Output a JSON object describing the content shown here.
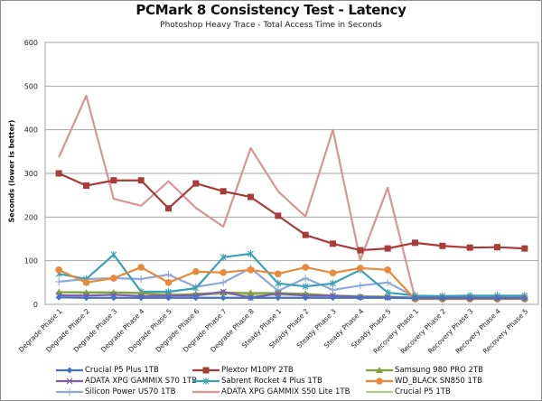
{
  "chart_data": {
    "type": "line",
    "title": "PCMark 8 Consistency Test - Latency",
    "subtitle": "Photoshop Heavy Trace - Total Access Time in Seconds",
    "xlabel": "",
    "ylabel": "Seconds (lower is better)",
    "ylim": [
      0,
      600
    ],
    "yticks": [
      "0",
      "100",
      "200",
      "300",
      "400",
      "500",
      "600"
    ],
    "grid": true,
    "legend_position": "bottom",
    "categories": [
      "Degrade Phase 1",
      "Degrade Phase 2",
      "Degrade Phase 3",
      "Degrade Phase 4",
      "Degrade Phase 5",
      "Degrade Phase 6",
      "Degrade Phase 7",
      "Degrade Phase 8",
      "Steady Phase 1",
      "Steady Phase 2",
      "Steady Phase 3",
      "Steady Phase 4",
      "Steady Phase 5",
      "Recovery Phase 1",
      "Recovery Phase 2",
      "Recovery Phase 3",
      "Recovery Phase 4",
      "Recovery Phase 5"
    ],
    "series": [
      {
        "name": "Crucial P5 Plus 1TB",
        "color": "#4472c4",
        "marker": "diamond",
        "values": [
          16,
          15,
          15,
          15,
          15,
          15,
          15,
          15,
          15,
          15,
          15,
          15,
          15,
          14,
          14,
          14,
          14,
          14
        ]
      },
      {
        "name": "Plextor M10PY 2TB",
        "color": "#a83c3a",
        "marker": "square",
        "values": [
          300,
          272,
          284,
          284,
          220,
          277,
          259,
          246,
          203,
          159,
          139,
          124,
          128,
          141,
          134,
          130,
          131,
          128
        ]
      },
      {
        "name": "Samsung 980 PRO 2TB",
        "color": "#7fa23c",
        "marker": "triangle",
        "values": [
          28,
          27,
          27,
          26,
          20,
          24,
          27,
          26,
          26,
          24,
          20,
          18,
          17,
          15,
          15,
          15,
          15,
          15
        ]
      },
      {
        "name": "ADATA XPG GAMMIX S70 1TB",
        "color": "#7b5ea7",
        "marker": "x",
        "values": [
          21,
          20,
          22,
          19,
          20,
          20,
          29,
          15,
          25,
          20,
          20,
          17,
          16,
          15,
          15,
          15,
          15,
          15
        ]
      },
      {
        "name": "Sabrent Rocket 4 Plus 1TB",
        "color": "#3aa0b4",
        "marker": "star",
        "values": [
          70,
          58,
          114,
          29,
          29,
          37,
          108,
          116,
          48,
          41,
          48,
          79,
          27,
          20,
          19,
          20,
          20,
          20
        ]
      },
      {
        "name": "WD_BLACK SN850 1TB",
        "color": "#e88a3a",
        "marker": "circle",
        "values": [
          79,
          50,
          60,
          85,
          50,
          75,
          73,
          79,
          70,
          85,
          72,
          83,
          79,
          12,
          12,
          12,
          12,
          12
        ]
      },
      {
        "name": "Silicon Power US70 1TB",
        "color": "#8fa8d8",
        "marker": "plus",
        "values": [
          52,
          58,
          60,
          58,
          68,
          40,
          50,
          83,
          31,
          60,
          33,
          43,
          50,
          17,
          17,
          18,
          17,
          17
        ]
      },
      {
        "name": "ADATA XPG GAMMIX S50 Lite 1TB",
        "color": "#d99594",
        "marker": "none",
        "values": [
          337,
          478,
          242,
          226,
          282,
          221,
          178,
          358,
          259,
          201,
          400,
          101,
          267,
          14,
          15,
          17,
          14,
          14
        ]
      },
      {
        "name": "Crucial P5 1TB",
        "color": "#b3cd8a",
        "marker": "none",
        "values": [
          28,
          28,
          28,
          26,
          24,
          22,
          24,
          22,
          22,
          21,
          20,
          19,
          18,
          15,
          15,
          15,
          15,
          15
        ]
      }
    ]
  }
}
